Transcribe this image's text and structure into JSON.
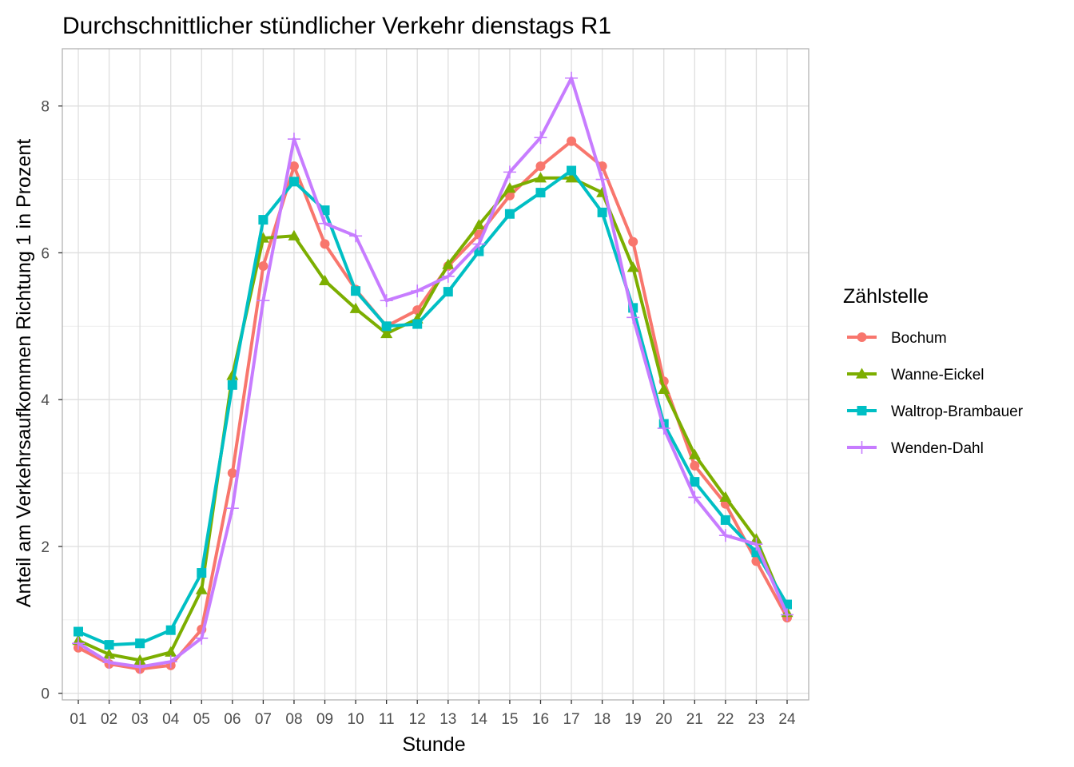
{
  "chart_data": {
    "type": "line",
    "title": "Durchschnittlicher stündlicher Verkehr dienstags R1",
    "xlabel": "Stunde",
    "ylabel": "Anteil am Verkehrsaufkommen Richtung 1 in Prozent",
    "categories": [
      "01",
      "02",
      "03",
      "04",
      "05",
      "06",
      "07",
      "08",
      "09",
      "10",
      "11",
      "12",
      "13",
      "14",
      "15",
      "16",
      "17",
      "18",
      "19",
      "20",
      "21",
      "22",
      "23",
      "24"
    ],
    "yticks": [
      "0",
      "2",
      "4",
      "6",
      "8"
    ],
    "ylim": [
      -0.09,
      8.78
    ],
    "grid": true,
    "legend": {
      "title": "Zählstelle",
      "placement": "right"
    },
    "series": [
      {
        "name": "Bochum",
        "color": "#F8766D",
        "marker": "circle",
        "values": [
          0.62,
          0.4,
          0.33,
          0.38,
          0.87,
          3.0,
          5.82,
          7.18,
          6.12,
          5.5,
          5.0,
          5.22,
          5.82,
          6.25,
          6.78,
          7.18,
          7.52,
          7.18,
          6.15,
          4.25,
          3.1,
          2.58,
          1.8,
          1.03
        ]
      },
      {
        "name": "Wanne-Eickel",
        "color": "#7CAE00",
        "marker": "triangle",
        "values": [
          0.72,
          0.53,
          0.45,
          0.56,
          1.41,
          4.33,
          6.2,
          6.23,
          5.62,
          5.24,
          4.9,
          5.1,
          5.84,
          6.38,
          6.88,
          7.02,
          7.02,
          6.82,
          5.8,
          4.14,
          3.25,
          2.67,
          2.1,
          1.1
        ]
      },
      {
        "name": "Waltrop-Brambauer",
        "color": "#00BFC4",
        "marker": "square",
        "values": [
          0.84,
          0.66,
          0.68,
          0.86,
          1.64,
          4.2,
          6.45,
          6.97,
          6.58,
          5.48,
          5.0,
          5.03,
          5.47,
          6.02,
          6.53,
          6.82,
          7.12,
          6.55,
          5.25,
          3.67,
          2.88,
          2.36,
          1.92,
          1.21
        ]
      },
      {
        "name": "Wenden-Dahl",
        "color": "#C77CFF",
        "marker": "plus",
        "values": [
          0.68,
          0.42,
          0.36,
          0.43,
          0.75,
          2.52,
          5.35,
          7.55,
          6.4,
          6.23,
          5.35,
          5.48,
          5.68,
          6.12,
          7.1,
          7.57,
          8.38,
          7.0,
          5.12,
          3.61,
          2.67,
          2.15,
          2.03,
          1.07
        ]
      }
    ]
  }
}
